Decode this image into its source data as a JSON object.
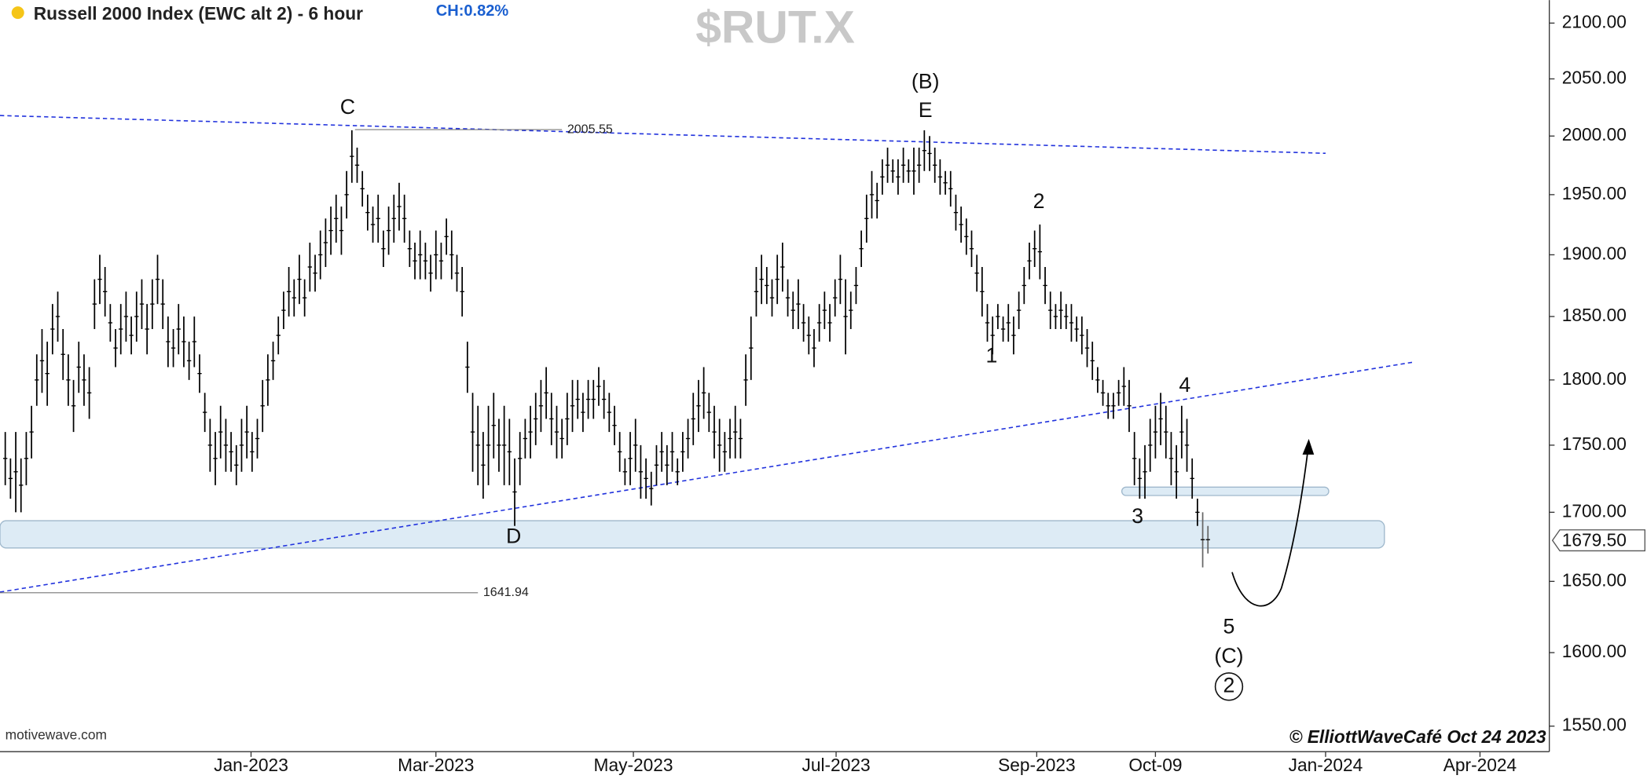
{
  "chart_data": {
    "type": "ohlc",
    "title": "Russell 2000 Index (EWC alt 2) - 6 hour",
    "change": "CH:0.82%",
    "symbol": "$RUT.X",
    "log_scale": true,
    "color": "#000000",
    "xlim": [
      0,
      295
    ],
    "ylim": [
      1533,
      2121
    ],
    "xticks": [
      {
        "value": 47.8,
        "label": "Jan-2023"
      },
      {
        "value": 83,
        "label": "Mar-2023"
      },
      {
        "value": 120.6,
        "label": "May-2023"
      },
      {
        "value": 159.2,
        "label": "Jul-2023"
      },
      {
        "value": 197.4,
        "label": "Sep-2023"
      },
      {
        "value": 220,
        "label": "Oct-09"
      },
      {
        "value": 252.4,
        "label": "Jan-2024"
      },
      {
        "value": 281.8,
        "label": "Apr-2024"
      }
    ],
    "yticks": [
      {
        "value": 1550,
        "label": "1550.00"
      },
      {
        "value": 1600,
        "label": "1600.00"
      },
      {
        "value": 1650,
        "label": "1650.00"
      },
      {
        "value": 1700,
        "label": "1700.00"
      },
      {
        "value": 1750,
        "label": "1750.00"
      },
      {
        "value": 1800,
        "label": "1800.00"
      },
      {
        "value": 1850,
        "label": "1850.00"
      },
      {
        "value": 1900,
        "label": "1900.00"
      },
      {
        "value": 1950,
        "label": "1950.00"
      },
      {
        "value": 2000,
        "label": "2000.00"
      },
      {
        "value": 2050,
        "label": "2050.00"
      },
      {
        "value": 2100,
        "label": "2100.00"
      }
    ],
    "levels": [
      2005.55,
      1641.94
    ],
    "last_price": {
      "value": 1679.5,
      "label": "1679.50"
    },
    "annotations": [
      "C",
      "(B)",
      "E",
      "2",
      "1",
      "4",
      "3",
      "D",
      "5",
      "(C)",
      "2"
    ],
    "source": "motivewave.com",
    "credit": "© ElliottWaveCafé Oct 24 2023",
    "bars": [
      [
        1,
        1760,
        1720
      ],
      [
        2,
        1740,
        1710
      ],
      [
        3,
        1760,
        1700
      ],
      [
        4,
        1740,
        1700
      ],
      [
        5,
        1760,
        1720
      ],
      [
        6,
        1780,
        1740
      ],
      [
        7,
        1820,
        1780
      ],
      [
        8,
        1840,
        1790
      ],
      [
        9,
        1830,
        1780
      ],
      [
        10,
        1860,
        1820
      ],
      [
        11,
        1870,
        1830
      ],
      [
        12,
        1840,
        1800
      ],
      [
        13,
        1820,
        1780
      ],
      [
        14,
        1800,
        1760
      ],
      [
        15,
        1830,
        1790
      ],
      [
        16,
        1820,
        1780
      ],
      [
        17,
        1810,
        1770
      ],
      [
        18,
        1880,
        1840
      ],
      [
        19,
        1900,
        1860
      ],
      [
        20,
        1890,
        1850
      ],
      [
        21,
        1860,
        1830
      ],
      [
        22,
        1840,
        1810
      ],
      [
        23,
        1860,
        1820
      ],
      [
        24,
        1870,
        1830
      ],
      [
        25,
        1850,
        1820
      ],
      [
        26,
        1870,
        1830
      ],
      [
        27,
        1880,
        1840
      ],
      [
        28,
        1860,
        1820
      ],
      [
        29,
        1880,
        1840
      ],
      [
        30,
        1900,
        1860
      ],
      [
        31,
        1880,
        1840
      ],
      [
        32,
        1850,
        1810
      ],
      [
        33,
        1840,
        1810
      ],
      [
        34,
        1860,
        1820
      ],
      [
        35,
        1850,
        1810
      ],
      [
        36,
        1830,
        1800
      ],
      [
        37,
        1850,
        1810
      ],
      [
        38,
        1820,
        1790
      ],
      [
        39,
        1790,
        1760
      ],
      [
        40,
        1770,
        1730
      ],
      [
        41,
        1760,
        1720
      ],
      [
        42,
        1780,
        1740
      ],
      [
        43,
        1770,
        1730
      ],
      [
        44,
        1760,
        1730
      ],
      [
        45,
        1750,
        1720
      ],
      [
        46,
        1770,
        1730
      ],
      [
        47,
        1780,
        1740
      ],
      [
        48,
        1760,
        1730
      ],
      [
        49,
        1770,
        1740
      ],
      [
        50,
        1800,
        1760
      ],
      [
        51,
        1820,
        1780
      ],
      [
        52,
        1830,
        1800
      ],
      [
        53,
        1850,
        1820
      ],
      [
        54,
        1870,
        1840
      ],
      [
        55,
        1890,
        1850
      ],
      [
        56,
        1880,
        1850
      ],
      [
        57,
        1900,
        1860
      ],
      [
        58,
        1880,
        1850
      ],
      [
        59,
        1910,
        1870
      ],
      [
        60,
        1900,
        1870
      ],
      [
        61,
        1920,
        1880
      ],
      [
        62,
        1930,
        1890
      ],
      [
        63,
        1940,
        1900
      ],
      [
        64,
        1950,
        1910
      ],
      [
        65,
        1940,
        1900
      ],
      [
        66,
        1970,
        1930
      ],
      [
        67,
        2005,
        1960
      ],
      [
        68,
        1990,
        1960
      ],
      [
        69,
        1970,
        1940
      ],
      [
        70,
        1950,
        1920
      ],
      [
        71,
        1940,
        1910
      ],
      [
        72,
        1950,
        1910
      ],
      [
        73,
        1920,
        1890
      ],
      [
        74,
        1940,
        1900
      ],
      [
        75,
        1950,
        1910
      ],
      [
        76,
        1960,
        1920
      ],
      [
        77,
        1950,
        1910
      ],
      [
        78,
        1920,
        1890
      ],
      [
        79,
        1910,
        1880
      ],
      [
        80,
        1920,
        1880
      ],
      [
        81,
        1910,
        1880
      ],
      [
        82,
        1900,
        1870
      ],
      [
        83,
        1920,
        1880
      ],
      [
        84,
        1910,
        1880
      ],
      [
        85,
        1930,
        1900
      ],
      [
        86,
        1920,
        1880
      ],
      [
        87,
        1900,
        1870
      ],
      [
        88,
        1890,
        1850
      ],
      [
        89,
        1830,
        1790
      ],
      [
        90,
        1790,
        1730
      ],
      [
        91,
        1780,
        1720
      ],
      [
        92,
        1760,
        1710
      ],
      [
        93,
        1780,
        1720
      ],
      [
        94,
        1790,
        1740
      ],
      [
        95,
        1770,
        1730
      ],
      [
        96,
        1780,
        1720
      ],
      [
        97,
        1770,
        1720
      ],
      [
        98,
        1740,
        1690
      ],
      [
        99,
        1760,
        1720
      ],
      [
        100,
        1770,
        1740
      ],
      [
        101,
        1780,
        1740
      ],
      [
        102,
        1790,
        1750
      ],
      [
        103,
        1800,
        1760
      ],
      [
        104,
        1810,
        1770
      ],
      [
        105,
        1790,
        1750
      ],
      [
        106,
        1780,
        1740
      ],
      [
        107,
        1770,
        1740
      ],
      [
        108,
        1790,
        1750
      ],
      [
        109,
        1800,
        1760
      ],
      [
        110,
        1800,
        1770
      ],
      [
        111,
        1790,
        1760
      ],
      [
        112,
        1800,
        1770
      ],
      [
        113,
        1800,
        1770
      ],
      [
        114,
        1810,
        1780
      ],
      [
        115,
        1800,
        1770
      ],
      [
        116,
        1790,
        1760
      ],
      [
        117,
        1780,
        1750
      ],
      [
        118,
        1760,
        1730
      ],
      [
        119,
        1740,
        1720
      ],
      [
        120,
        1760,
        1720
      ],
      [
        121,
        1770,
        1730
      ],
      [
        122,
        1750,
        1710
      ],
      [
        123,
        1740,
        1710
      ],
      [
        124,
        1730,
        1705
      ],
      [
        125,
        1750,
        1720
      ],
      [
        126,
        1760,
        1730
      ],
      [
        127,
        1750,
        1720
      ],
      [
        128,
        1760,
        1730
      ],
      [
        129,
        1740,
        1720
      ],
      [
        130,
        1760,
        1730
      ],
      [
        131,
        1770,
        1740
      ],
      [
        132,
        1790,
        1750
      ],
      [
        133,
        1800,
        1760
      ],
      [
        134,
        1810,
        1770
      ],
      [
        135,
        1790,
        1760
      ],
      [
        136,
        1780,
        1740
      ],
      [
        137,
        1770,
        1730
      ],
      [
        138,
        1760,
        1730
      ],
      [
        139,
        1770,
        1740
      ],
      [
        140,
        1780,
        1740
      ],
      [
        141,
        1770,
        1740
      ],
      [
        142,
        1820,
        1780
      ],
      [
        143,
        1850,
        1800
      ],
      [
        144,
        1890,
        1850
      ],
      [
        145,
        1900,
        1860
      ],
      [
        146,
        1890,
        1860
      ],
      [
        147,
        1880,
        1850
      ],
      [
        148,
        1900,
        1860
      ],
      [
        149,
        1910,
        1870
      ],
      [
        150,
        1880,
        1850
      ],
      [
        151,
        1870,
        1840
      ],
      [
        152,
        1880,
        1840
      ],
      [
        153,
        1860,
        1830
      ],
      [
        154,
        1850,
        1820
      ],
      [
        155,
        1840,
        1810
      ],
      [
        156,
        1860,
        1830
      ],
      [
        157,
        1870,
        1840
      ],
      [
        158,
        1860,
        1830
      ],
      [
        159,
        1880,
        1850
      ],
      [
        160,
        1900,
        1860
      ],
      [
        161,
        1880,
        1820
      ],
      [
        162,
        1870,
        1840
      ],
      [
        163,
        1890,
        1860
      ],
      [
        164,
        1920,
        1890
      ],
      [
        165,
        1950,
        1910
      ],
      [
        166,
        1970,
        1930
      ],
      [
        167,
        1960,
        1930
      ],
      [
        168,
        1980,
        1950
      ],
      [
        169,
        1990,
        1960
      ],
      [
        170,
        1980,
        1960
      ],
      [
        171,
        1980,
        1950
      ],
      [
        172,
        1990,
        1960
      ],
      [
        173,
        1980,
        1960
      ],
      [
        174,
        1990,
        1950
      ],
      [
        175,
        1990,
        1960
      ],
      [
        176,
        2005,
        1970
      ],
      [
        177,
        2000,
        1970
      ],
      [
        178,
        1990,
        1960
      ],
      [
        179,
        1980,
        1950
      ],
      [
        180,
        1970,
        1950
      ],
      [
        181,
        1970,
        1940
      ],
      [
        182,
        1950,
        1920
      ],
      [
        183,
        1940,
        1910
      ],
      [
        184,
        1930,
        1900
      ],
      [
        185,
        1920,
        1890
      ],
      [
        186,
        1900,
        1870
      ],
      [
        187,
        1890,
        1850
      ],
      [
        188,
        1860,
        1830
      ],
      [
        189,
        1850,
        1820
      ],
      [
        190,
        1860,
        1840
      ],
      [
        191,
        1850,
        1830
      ],
      [
        192,
        1860,
        1830
      ],
      [
        193,
        1850,
        1820
      ],
      [
        194,
        1870,
        1840
      ],
      [
        195,
        1890,
        1860
      ],
      [
        196,
        1910,
        1880
      ],
      [
        197,
        1920,
        1890
      ],
      [
        198,
        1925,
        1880
      ],
      [
        199,
        1890,
        1860
      ],
      [
        200,
        1870,
        1840
      ],
      [
        201,
        1860,
        1840
      ],
      [
        202,
        1870,
        1840
      ],
      [
        203,
        1860,
        1840
      ],
      [
        204,
        1860,
        1830
      ],
      [
        205,
        1850,
        1830
      ],
      [
        206,
        1850,
        1820
      ],
      [
        207,
        1840,
        1810
      ],
      [
        208,
        1830,
        1800
      ],
      [
        209,
        1810,
        1790
      ],
      [
        210,
        1800,
        1780
      ],
      [
        211,
        1790,
        1770
      ],
      [
        212,
        1790,
        1770
      ],
      [
        213,
        1800,
        1780
      ],
      [
        214,
        1810,
        1780
      ],
      [
        215,
        1800,
        1760
      ],
      [
        216,
        1760,
        1720
      ],
      [
        217,
        1740,
        1710
      ],
      [
        218,
        1750,
        1710
      ],
      [
        219,
        1770,
        1730
      ],
      [
        220,
        1780,
        1740
      ],
      [
        221,
        1790,
        1750
      ],
      [
        222,
        1780,
        1740
      ],
      [
        223,
        1760,
        1720
      ],
      [
        224,
        1750,
        1710
      ],
      [
        225,
        1780,
        1740
      ],
      [
        226,
        1770,
        1730
      ],
      [
        227,
        1740,
        1710
      ],
      [
        228,
        1710,
        1690
      ],
      [
        229,
        1700,
        1660
      ],
      [
        230,
        1690,
        1670
      ]
    ]
  }
}
